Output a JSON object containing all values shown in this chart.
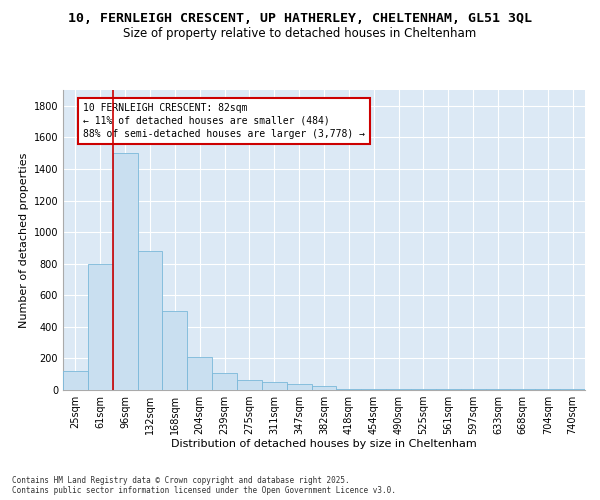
{
  "title_line1": "10, FERNLEIGH CRESCENT, UP HATHERLEY, CHELTENHAM, GL51 3QL",
  "title_line2": "Size of property relative to detached houses in Cheltenham",
  "xlabel": "Distribution of detached houses by size in Cheltenham",
  "ylabel": "Number of detached properties",
  "categories": [
    "25sqm",
    "61sqm",
    "96sqm",
    "132sqm",
    "168sqm",
    "204sqm",
    "239sqm",
    "275sqm",
    "311sqm",
    "347sqm",
    "382sqm",
    "418sqm",
    "454sqm",
    "490sqm",
    "525sqm",
    "561sqm",
    "597sqm",
    "633sqm",
    "668sqm",
    "704sqm",
    "740sqm"
  ],
  "values": [
    120,
    800,
    1500,
    880,
    500,
    210,
    110,
    65,
    50,
    35,
    25,
    5,
    5,
    5,
    5,
    5,
    5,
    5,
    5,
    5,
    5
  ],
  "bar_color": "#c9dff0",
  "bar_edge_color": "#7ab8d9",
  "vline_x": 1.5,
  "vline_color": "#cc0000",
  "annotation_text": "10 FERNLEIGH CRESCENT: 82sqm\n← 11% of detached houses are smaller (484)\n88% of semi-detached houses are larger (3,778) →",
  "annotation_box_facecolor": "#ffffff",
  "annotation_box_edgecolor": "#cc0000",
  "ylim": [
    0,
    1900
  ],
  "yticks": [
    0,
    200,
    400,
    600,
    800,
    1000,
    1200,
    1400,
    1600,
    1800
  ],
  "bg_color": "#dce9f5",
  "grid_color": "#ffffff",
  "footer": "Contains HM Land Registry data © Crown copyright and database right 2025.\nContains public sector information licensed under the Open Government Licence v3.0.",
  "title_fontsize": 9.5,
  "subtitle_fontsize": 8.5,
  "xlabel_fontsize": 8,
  "ylabel_fontsize": 8,
  "tick_fontsize": 7,
  "annot_fontsize": 7,
  "footer_fontsize": 5.5
}
